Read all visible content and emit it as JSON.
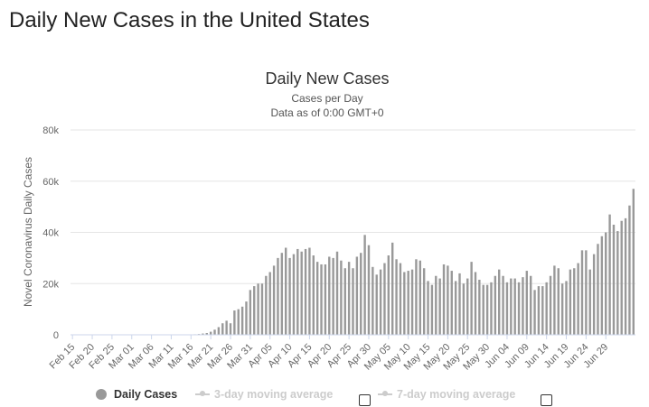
{
  "page": {
    "heading": "Daily New Cases in the United States"
  },
  "chart_data": {
    "type": "bar",
    "title": "Daily New Cases",
    "subtitle": "Cases per Day",
    "subtitle2": "Data as of 0:00 GMT+0",
    "xlabel": "",
    "ylabel": "Novel Coronavirus Daily Cases",
    "ylim": [
      0,
      80000
    ],
    "y_ticks": [
      0,
      20000,
      40000,
      60000,
      80000
    ],
    "y_tick_labels": [
      "0",
      "20k",
      "40k",
      "60k",
      "80k"
    ],
    "x_tick_labels": [
      "Feb 15",
      "Feb 20",
      "Feb 25",
      "Mar 01",
      "Mar 06",
      "Mar 11",
      "Mar 16",
      "Mar 21",
      "Mar 26",
      "Mar 31",
      "Apr 05",
      "Apr 10",
      "Apr 15",
      "Apr 20",
      "Apr 25",
      "Apr 30",
      "May 05",
      "May 10",
      "May 15",
      "May 20",
      "May 25",
      "May 30",
      "Jun 04",
      "Jun 09",
      "Jun 14",
      "Jun 19",
      "Jun 24",
      "Jun 29"
    ],
    "grid": true,
    "bar_color": "#999999",
    "first_date": "Feb 15",
    "values": [
      0,
      0,
      0,
      0,
      0,
      0,
      0,
      0,
      0,
      0,
      0,
      0,
      0,
      0,
      0,
      0,
      0,
      0,
      0,
      0,
      0,
      0,
      0,
      0,
      0,
      0,
      0,
      0,
      0,
      0,
      100,
      200,
      300,
      500,
      700,
      1200,
      2000,
      3000,
      4500,
      5500,
      4500,
      9500,
      10000,
      11000,
      13000,
      17500,
      19000,
      20000,
      20000,
      23000,
      24500,
      27000,
      30000,
      32000,
      34000,
      30000,
      31500,
      33500,
      32500,
      33500,
      34000,
      31000,
      28500,
      27500,
      27500,
      30500,
      30000,
      32500,
      29000,
      26000,
      28500,
      26000,
      30500,
      32000,
      39000,
      35000,
      26500,
      23500,
      25500,
      28000,
      31000,
      36000,
      29500,
      28000,
      24500,
      25000,
      25500,
      29500,
      29000,
      26000,
      21000,
      19500,
      23000,
      22000,
      27500,
      27000,
      25000,
      21000,
      24000,
      20000,
      22000,
      28500,
      24500,
      21500,
      19500,
      19500,
      20500,
      23000,
      25500,
      23000,
      20500,
      22000,
      22000,
      20500,
      22500,
      25000,
      23000,
      17500,
      19000,
      19000,
      20500,
      23000,
      27000,
      26000,
      20000,
      21000,
      25500,
      26000,
      28000,
      33000,
      33000,
      25500,
      31500,
      35500,
      38500,
      40000,
      47000,
      43000,
      40500,
      44500,
      45500,
      50500,
      57000
    ]
  },
  "legend": {
    "items": [
      {
        "label": "Daily Cases"
      },
      {
        "label": "3-day moving average"
      },
      {
        "label": "7-day moving average"
      }
    ]
  }
}
